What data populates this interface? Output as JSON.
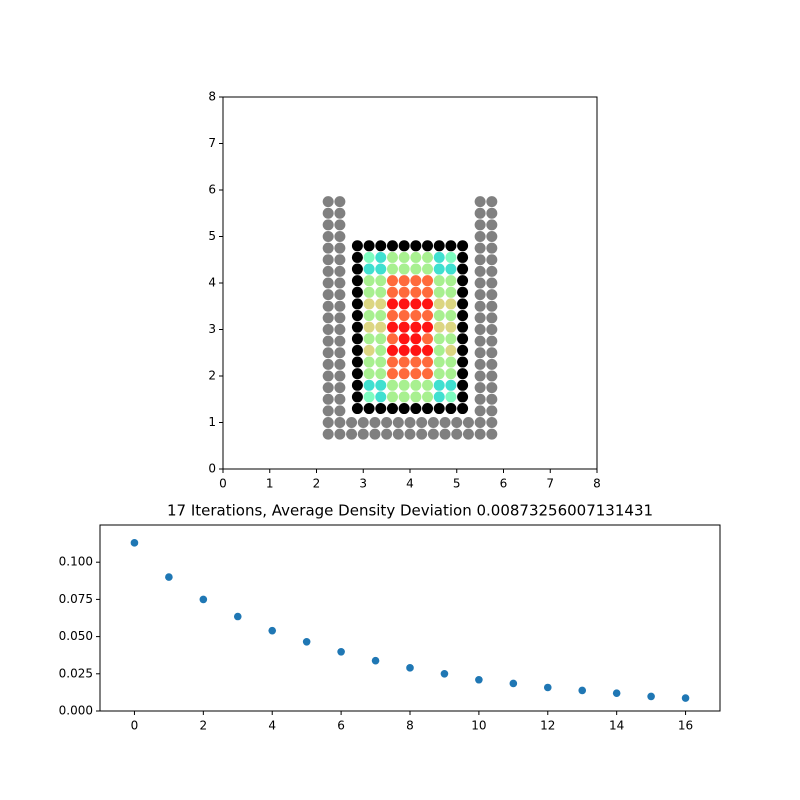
{
  "chart_data": [
    {
      "type": "scatter",
      "xlim": [
        0,
        8
      ],
      "ylim": [
        0,
        8
      ],
      "xticks": [
        0,
        1,
        2,
        3,
        4,
        5,
        6,
        7,
        8
      ],
      "yticks": [
        0,
        1,
        2,
        3,
        4,
        5,
        6,
        7,
        8
      ],
      "series": [
        {
          "color": "#808080",
          "x": [
            2.25,
            2.5,
            2.75,
            3,
            3.25,
            3.5,
            3.75,
            4,
            4.25,
            4.5,
            4.75,
            5,
            5.25,
            5.5,
            5.75,
            2.25,
            2.5,
            2.75,
            3,
            3.25,
            3.5,
            3.75,
            4,
            4.25,
            4.5,
            4.75,
            5,
            5.25,
            5.5,
            5.75,
            2.25,
            2.5,
            5.5,
            5.75,
            2.25,
            2.5,
            5.5,
            5.75,
            2.25,
            2.5,
            5.5,
            5.75,
            2.25,
            2.5,
            5.5,
            5.75,
            2.25,
            2.5,
            5.5,
            5.75,
            2.25,
            2.5,
            5.5,
            5.75,
            2.25,
            2.5,
            5.5,
            5.75,
            2.25,
            2.5,
            5.5,
            5.75,
            2.25,
            2.5,
            5.5,
            5.75,
            2.25,
            2.5,
            5.5,
            5.75,
            2.25,
            2.5,
            5.5,
            5.75,
            2.25,
            2.5,
            5.5,
            5.75,
            2.25,
            2.5,
            5.5,
            5.75,
            2.25,
            2.5,
            5.5,
            5.75,
            2.25,
            2.5,
            5.5,
            5.75,
            2.25,
            2.5,
            5.5,
            5.75,
            2.25,
            2.5,
            5.5,
            5.75,
            2.25,
            2.5,
            5.5,
            5.75,
            2.25,
            2.5,
            5.5,
            5.75
          ],
          "y": [
            0.75,
            0.75,
            0.75,
            0.75,
            0.75,
            0.75,
            0.75,
            0.75,
            0.75,
            0.75,
            0.75,
            0.75,
            0.75,
            0.75,
            0.75,
            1,
            1,
            1,
            1,
            1,
            1,
            1,
            1,
            1,
            1,
            1,
            1,
            1,
            1,
            1,
            1.25,
            1.25,
            1.25,
            1.25,
            1.5,
            1.5,
            1.5,
            1.5,
            1.75,
            1.75,
            1.75,
            1.75,
            2,
            2,
            2,
            2,
            2.25,
            2.25,
            2.25,
            2.25,
            2.5,
            2.5,
            2.5,
            2.5,
            2.75,
            2.75,
            2.75,
            2.75,
            3,
            3,
            3,
            3,
            3.25,
            3.25,
            3.25,
            3.25,
            3.5,
            3.5,
            3.5,
            3.5,
            3.75,
            3.75,
            3.75,
            3.75,
            4,
            4,
            4,
            4,
            4.25,
            4.25,
            4.25,
            4.25,
            4.5,
            4.5,
            4.5,
            4.5,
            4.75,
            4.75,
            4.75,
            4.75,
            5,
            5,
            5,
            5,
            5.25,
            5.25,
            5.25,
            5.25,
            5.5,
            5.5,
            5.5,
            5.5,
            5.75,
            5.75,
            5.75,
            5.75
          ]
        },
        {
          "color": "#000000",
          "x": [
            2.875,
            3.125,
            3.375,
            3.625,
            3.875,
            4.125,
            4.375,
            4.625,
            4.875,
            5.125,
            2.875,
            5.125,
            2.875,
            5.125,
            2.875,
            5.125,
            2.875,
            5.125,
            2.875,
            5.125,
            2.875,
            5.125,
            2.875,
            5.125,
            2.875,
            5.125,
            2.875,
            5.125,
            2.875,
            5.125,
            2.875,
            5.125,
            2.875,
            5.125,
            2.875,
            5.125,
            2.875,
            3.125,
            3.375,
            3.625,
            3.875,
            4.125,
            4.375,
            4.625,
            4.875,
            5.125
          ],
          "y": [
            1.3,
            1.3,
            1.3,
            1.3,
            1.3,
            1.3,
            1.3,
            1.3,
            1.3,
            1.3,
            1.55,
            1.55,
            1.8,
            1.8,
            2.05,
            2.05,
            2.3,
            2.3,
            2.55,
            2.55,
            2.8,
            2.8,
            3.05,
            3.05,
            3.3,
            3.3,
            3.55,
            3.55,
            3.8,
            3.8,
            4.05,
            4.05,
            4.3,
            4.3,
            4.55,
            4.55,
            4.8,
            4.8,
            4.8,
            4.8,
            4.8,
            4.8,
            4.8,
            4.8,
            4.8,
            4.8
          ]
        },
        {
          "color": "#7dfcc0",
          "x": [
            3.125,
            4.875,
            3.125,
            4.875
          ],
          "y": [
            4.55,
            4.55,
            1.55,
            1.55
          ]
        },
        {
          "color": "#40e0d0",
          "x": [
            3.375,
            4.625,
            3.125,
            3.375,
            4.625,
            4.875,
            3.125,
            3.375,
            4.625,
            4.875,
            3.375,
            4.625
          ],
          "y": [
            4.55,
            4.55,
            4.3,
            4.3,
            4.3,
            4.3,
            1.8,
            1.8,
            1.8,
            1.8,
            1.55,
            1.55
          ]
        },
        {
          "color": "#a8f090",
          "x": [
            3.625,
            3.875,
            4.125,
            4.375,
            3.625,
            3.875,
            4.125,
            4.375,
            3.125,
            3.375,
            4.625,
            4.875,
            3.125,
            3.375,
            4.625,
            4.875,
            3.125,
            3.375,
            4.625,
            4.875,
            3.125,
            3.375,
            4.625,
            4.875,
            3.375,
            4.625,
            3.125,
            3.375,
            4.625,
            4.875,
            3.125,
            3.375,
            4.625,
            4.875,
            3.625,
            3.875,
            4.125,
            4.375,
            3.625,
            3.875,
            4.125,
            4.375
          ],
          "y": [
            4.55,
            4.55,
            4.55,
            4.55,
            4.3,
            4.3,
            4.3,
            4.3,
            4.05,
            4.05,
            4.05,
            4.05,
            3.8,
            3.8,
            3.8,
            3.8,
            3.3,
            3.3,
            3.3,
            3.3,
            2.8,
            2.8,
            2.8,
            2.8,
            2.55,
            2.55,
            2.3,
            2.3,
            2.3,
            2.3,
            2.05,
            2.05,
            2.05,
            2.05,
            1.8,
            1.8,
            1.8,
            1.8,
            1.55,
            1.55,
            1.55,
            1.55
          ]
        },
        {
          "color": "#dcd682",
          "x": [
            3.125,
            3.375,
            4.625,
            4.875,
            3.125,
            3.375,
            4.625,
            4.875,
            3.125,
            4.875
          ],
          "y": [
            3.55,
            3.55,
            3.55,
            3.55,
            3.05,
            3.05,
            3.05,
            3.05,
            2.55,
            2.55
          ]
        },
        {
          "color": "#ff6a3c",
          "x": [
            3.625,
            3.875,
            4.125,
            4.375,
            3.625,
            3.875,
            4.125,
            4.375,
            3.625,
            3.875,
            4.125,
            4.375,
            3.625,
            4.375,
            3.625,
            3.875,
            4.125,
            4.375,
            3.625,
            3.875,
            4.125,
            4.375
          ],
          "y": [
            4.05,
            4.05,
            4.05,
            4.05,
            3.8,
            3.8,
            3.8,
            3.8,
            3.3,
            3.3,
            3.3,
            3.3,
            2.8,
            2.8,
            2.3,
            2.3,
            2.3,
            2.3,
            2.05,
            2.05,
            2.05,
            2.05
          ]
        },
        {
          "color": "#ff1414",
          "x": [
            3.625,
            3.875,
            4.125,
            4.375,
            3.625,
            3.875,
            4.125,
            4.375,
            3.875,
            4.125,
            3.625,
            3.875,
            4.125,
            4.375
          ],
          "y": [
            3.55,
            3.55,
            3.55,
            3.55,
            3.05,
            3.05,
            3.05,
            3.05,
            2.8,
            2.8,
            2.55,
            2.55,
            2.55,
            2.55
          ]
        }
      ]
    },
    {
      "type": "scatter",
      "title": "17 Iterations, Average Density Deviation 0.00873256007131431",
      "xlim": [
        -1,
        17
      ],
      "ylim": [
        0,
        0.125
      ],
      "xticks": [
        0,
        2,
        4,
        6,
        8,
        10,
        12,
        14,
        16
      ],
      "yticks": [
        {
          "value": 0,
          "label": "0.000"
        },
        {
          "value": 0.025,
          "label": "0.025"
        },
        {
          "value": 0.05,
          "label": "0.050"
        },
        {
          "value": 0.075,
          "label": "0.075"
        },
        {
          "value": 0.1,
          "label": "0.100"
        }
      ],
      "series": [
        {
          "color": "#1f77b4",
          "x": [
            0,
            1,
            2,
            3,
            4,
            5,
            6,
            7,
            8,
            9,
            10,
            11,
            12,
            13,
            14,
            15,
            16
          ],
          "y": [
            0.113,
            0.09,
            0.075,
            0.0635,
            0.054,
            0.0465,
            0.0398,
            0.0338,
            0.029,
            0.025,
            0.021,
            0.0185,
            0.0158,
            0.0138,
            0.012,
            0.0098,
            0.0087
          ]
        }
      ]
    }
  ]
}
